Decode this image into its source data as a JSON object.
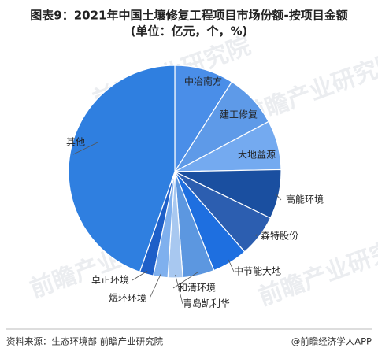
{
  "chart_data": {
    "type": "pie",
    "title": [
      "图表9：2021年中国土壤修复工程项目市场份额-按项目金额",
      "(单位：亿元，个，%)"
    ],
    "categories": [
      "中冶南方",
      "建工修复",
      "大地益源",
      "高能环境",
      "森特股份",
      "中节能大地",
      "和清环境",
      "青岛凯利华",
      "煜环环境",
      "卓正环境",
      "其他"
    ],
    "values": [
      9.0,
      8.2,
      7.5,
      7.5,
      6.4,
      5.4,
      4.8,
      2.25,
      2.2,
      2.1,
      44.65
    ],
    "colors": [
      "#4a8ee8",
      "#5e9ae8",
      "#74aaf0",
      "#1a4fa0",
      "#2c5eb0",
      "#1e6fe0",
      "#5c97e0",
      "#a8c8f0",
      "#7fb0ee",
      "#1e5fc8",
      "#2f7fe0"
    ],
    "source": "资料来源：生态环境部 前瞻产业研究院",
    "credit": "@前瞻经济学人APP",
    "watermark": "前瞻产业研究院"
  }
}
